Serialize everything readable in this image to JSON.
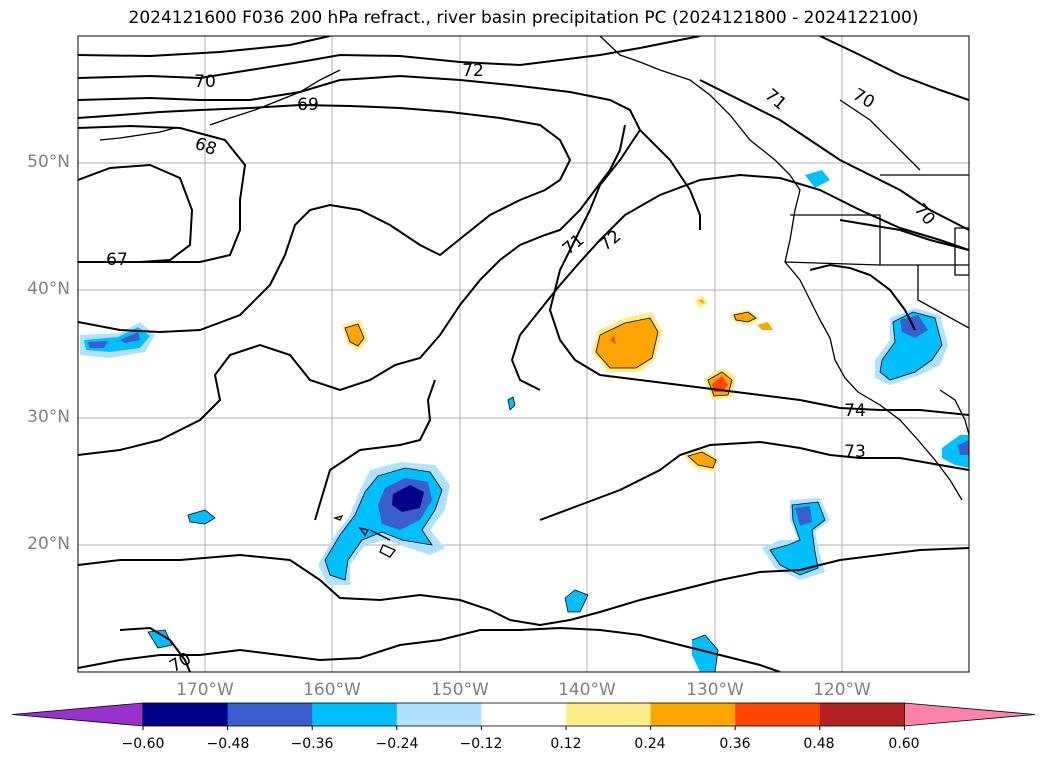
{
  "title": "2024121600 F036 200 hPa refract., river basin precipitation PC (2024121800 - 2024122100)",
  "lat_labels": [
    "50°N",
    "40°N",
    "30°N",
    "20°N"
  ],
  "lon_labels": [
    "170°W",
    "160°W",
    "150°W",
    "140°W",
    "130°W",
    "120°W"
  ],
  "contour_labels": [
    "70",
    "72",
    "69",
    "68",
    "67",
    "71",
    "72",
    "71",
    "70",
    "70",
    "74",
    "73",
    "70"
  ],
  "colorbar": {
    "colors": [
      "#9932cc",
      "#00008b",
      "#3a5fcd",
      "#00bfff",
      "#b0e2ff",
      "#ffffff",
      "#ffec8b",
      "#ffa500",
      "#ff4500",
      "#b22222",
      "#ff82ab"
    ],
    "ticks": [
      "−0.60",
      "−0.48",
      "−0.36",
      "−0.24",
      "−0.12",
      "0.12",
      "0.24",
      "0.36",
      "0.48",
      "0.60"
    ]
  }
}
